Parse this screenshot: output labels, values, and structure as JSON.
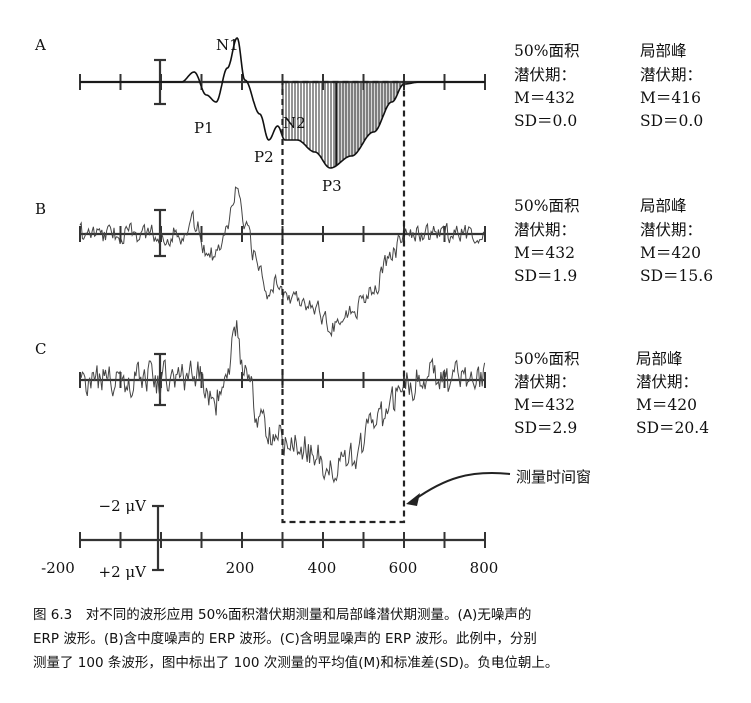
{
  "chart_data": {
    "type": "line",
    "x_axis": {
      "ticks": [
        "-200",
        "200",
        "400",
        "600",
        "800"
      ],
      "range": [
        -200,
        800
      ]
    },
    "scale_bar": {
      "top_label": "−2 μV",
      "bottom_label": "+2 μV"
    },
    "measurement_window": {
      "start": 300,
      "end": 600,
      "label": "测量时间窗"
    },
    "panels": [
      {
        "id": "A",
        "peak_labels": [
          "N1",
          "P1",
          "N2",
          "P2",
          "P3"
        ],
        "stats": {
          "area_title": [
            "50%面积",
            "潜伏期："
          ],
          "area_M": "M＝432",
          "area_SD": "SD＝0.0",
          "peak_title": [
            "局部峰",
            "潜伏期："
          ],
          "peak_M": "M＝416",
          "peak_SD": "SD＝0.0"
        }
      },
      {
        "id": "B",
        "stats": {
          "area_title": [
            "50%面积",
            "潜伏期："
          ],
          "area_M": "M＝432",
          "area_SD": "SD＝1.9",
          "peak_title": [
            "局部峰",
            "潜伏期："
          ],
          "peak_M": "M＝420",
          "peak_SD": "SD＝15.6"
        }
      },
      {
        "id": "C",
        "stats": {
          "area_title": [
            "50%面积",
            "潜伏期："
          ],
          "area_M": "M＝432",
          "area_SD": "SD＝2.9",
          "peak_title": [
            "局部峰",
            "潜伏期："
          ],
          "peak_M": "M＝420",
          "peak_SD": "SD＝20.4"
        }
      }
    ]
  },
  "caption": [
    "图 6.3　对不同的波形应用 50%面积潜伏期测量和局部峰潜伏期测量。(A)无噪声的",
    "ERP 波形。(B)含中度噪声的 ERP 波形。(C)含明显噪声的 ERP 波形。此例中，分别",
    "测量了 100 条波形，图中标出了 100 次测量的平均值(M)和标准差(SD)。负电位朝上。"
  ]
}
